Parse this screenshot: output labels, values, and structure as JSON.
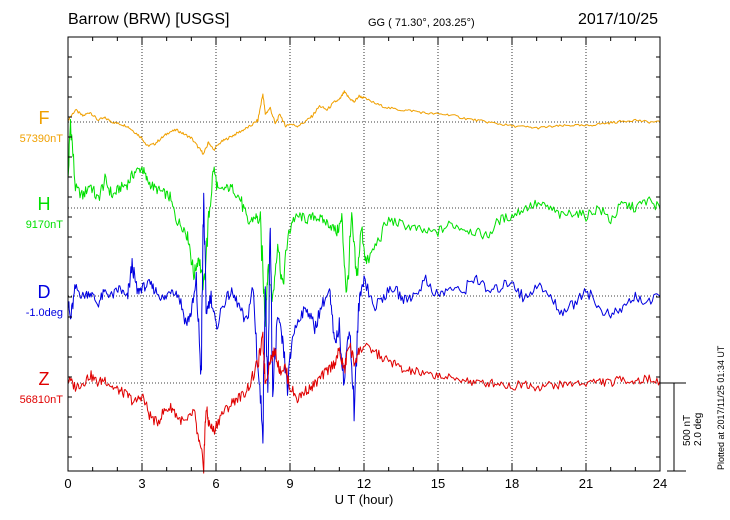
{
  "header": {
    "station": "Barrow (BRW)  [USGS]",
    "coords": "GG ( 71.30°, 203.25°)",
    "date": "2017/10/25"
  },
  "footer": {
    "plotted": "Plotted at 2017/11/25 01:34 UT",
    "scale_nt": "500 nT",
    "scale_deg": "2.0 deg"
  },
  "chart_data": {
    "type": "line",
    "title": "Barrow (BRW)  [USGS]",
    "xlabel": "U T (hour)",
    "ylabel": "",
    "xlim": [
      0,
      24
    ],
    "xticks": [
      0,
      3,
      6,
      9,
      12,
      15,
      18,
      21,
      24
    ],
    "grid": true,
    "series": [
      {
        "name": "F",
        "baseline_label": "57390nT",
        "color": "#f0a000",
        "x": [
          0,
          0.3,
          0.6,
          0.9,
          1.2,
          1.5,
          1.8,
          2.1,
          2.4,
          2.7,
          3.0,
          3.2,
          3.5,
          3.8,
          4.1,
          4.4,
          4.7,
          5.0,
          5.3,
          5.5,
          5.7,
          5.9,
          6.2,
          6.5,
          6.8,
          7.1,
          7.4,
          7.7,
          7.9,
          8.0,
          8.2,
          8.4,
          8.6,
          8.8,
          9.0,
          9.3,
          9.6,
          9.9,
          10.2,
          10.5,
          10.8,
          11.0,
          11.2,
          11.4,
          11.6,
          11.8,
          12.0,
          12.5,
          13.0,
          13.5,
          14.0,
          14.5,
          15.0,
          15.5,
          16.0,
          16.5,
          17.0,
          17.5,
          18.0,
          18.5,
          19.0,
          19.5,
          20.0,
          20.5,
          21.0,
          21.5,
          22.0,
          22.5,
          23.0,
          23.5,
          24.0
        ],
        "y": [
          0.05,
          0.3,
          0.15,
          0.25,
          0.05,
          0.1,
          0.0,
          -0.05,
          -0.1,
          -0.25,
          -0.4,
          -0.6,
          -0.55,
          -0.4,
          -0.25,
          -0.2,
          -0.3,
          -0.4,
          -0.65,
          -0.8,
          -0.5,
          -0.7,
          -0.5,
          -0.4,
          -0.3,
          -0.2,
          -0.1,
          0.05,
          0.7,
          0.2,
          0.35,
          -0.05,
          0.2,
          -0.1,
          -0.05,
          -0.1,
          0.0,
          0.15,
          0.4,
          0.3,
          0.5,
          0.55,
          0.75,
          0.6,
          0.5,
          0.65,
          0.6,
          0.45,
          0.35,
          0.3,
          0.28,
          0.22,
          0.2,
          0.18,
          0.1,
          0.05,
          0.0,
          -0.05,
          -0.1,
          -0.12,
          -0.15,
          -0.12,
          -0.1,
          -0.08,
          -0.1,
          -0.05,
          -0.02,
          0.02,
          0.05,
          0.0,
          0.0
        ]
      },
      {
        "name": "H",
        "baseline_label": "9170nT",
        "color": "#00e000",
        "x": [
          0,
          0.1,
          0.3,
          0.6,
          0.9,
          1.2,
          1.5,
          1.8,
          2.1,
          2.4,
          2.7,
          3.0,
          3.2,
          3.5,
          3.8,
          4.1,
          4.4,
          4.7,
          4.9,
          5.1,
          5.3,
          5.5,
          5.7,
          5.9,
          6.1,
          6.4,
          6.7,
          7.0,
          7.3,
          7.6,
          7.8,
          8.0,
          8.1,
          8.3,
          8.5,
          8.7,
          8.9,
          9.1,
          9.4,
          9.7,
          10.0,
          10.3,
          10.6,
          10.9,
          11.1,
          11.3,
          11.5,
          11.7,
          11.9,
          12.1,
          12.5,
          13.0,
          13.5,
          14.0,
          14.5,
          15.0,
          15.5,
          16.0,
          16.5,
          17.0,
          17.5,
          18.0,
          18.5,
          19.0,
          19.5,
          20.0,
          20.5,
          21.0,
          21.5,
          22.0,
          22.5,
          23.0,
          23.5,
          24.0
        ],
        "y": [
          0.6,
          2.2,
          0.5,
          0.3,
          0.6,
          0.2,
          0.7,
          0.3,
          0.5,
          0.6,
          0.9,
          1.0,
          0.7,
          0.5,
          0.4,
          0.3,
          -0.3,
          -0.5,
          -0.8,
          -1.7,
          -1.2,
          -2.0,
          -0.3,
          1.0,
          0.4,
          0.5,
          0.5,
          0.2,
          -0.4,
          -0.2,
          -0.4,
          -2.8,
          -1.5,
          -2.3,
          -0.8,
          -2.0,
          -0.8,
          -0.3,
          -0.2,
          -0.3,
          -0.2,
          -0.3,
          -0.4,
          -0.6,
          -0.3,
          -2.2,
          -0.3,
          -1.8,
          -0.5,
          -1.4,
          -0.9,
          -0.3,
          -0.4,
          -0.5,
          -0.6,
          -0.6,
          -0.4,
          -0.5,
          -0.6,
          -0.7,
          -0.3,
          -0.2,
          0.0,
          0.1,
          0.0,
          -0.2,
          -0.1,
          -0.2,
          0.0,
          -0.3,
          0.1,
          0.0,
          0.2,
          0.0
        ]
      },
      {
        "name": "D",
        "baseline_label": "-1.0deg",
        "color": "#0000e0",
        "x": [
          0,
          0.1,
          0.3,
          0.6,
          0.9,
          1.2,
          1.5,
          1.8,
          2.1,
          2.4,
          2.6,
          2.8,
          3.0,
          3.3,
          3.6,
          3.9,
          4.2,
          4.5,
          4.8,
          5.0,
          5.2,
          5.4,
          5.5,
          5.6,
          5.8,
          6.0,
          6.3,
          6.6,
          6.9,
          7.2,
          7.5,
          7.7,
          7.9,
          8.0,
          8.1,
          8.2,
          8.3,
          8.5,
          8.7,
          8.9,
          9.1,
          9.4,
          9.7,
          10.0,
          10.3,
          10.6,
          10.8,
          11.0,
          11.2,
          11.4,
          11.6,
          11.8,
          12.0,
          12.4,
          12.8,
          13.2,
          13.6,
          14.0,
          14.5,
          15.0,
          15.5,
          16.0,
          16.5,
          17.0,
          17.5,
          18.0,
          18.5,
          19.0,
          19.5,
          20.0,
          20.5,
          21.0,
          21.5,
          22.0,
          22.5,
          23.0,
          23.5,
          24.0
        ],
        "y": [
          -0.1,
          -0.6,
          0.2,
          0.0,
          0.1,
          -0.2,
          0.1,
          0.0,
          0.2,
          -0.1,
          0.8,
          0.1,
          0.2,
          0.3,
          0.1,
          -0.1,
          0.2,
          0.0,
          -0.7,
          -0.4,
          0.3,
          -2.0,
          2.5,
          -0.4,
          0.0,
          -0.8,
          -0.2,
          0.1,
          -0.2,
          -0.7,
          0.2,
          -1.8,
          -3.3,
          0.3,
          -2.8,
          1.9,
          -2.5,
          -0.5,
          -1.2,
          -2.3,
          -1.0,
          -0.5,
          -0.3,
          -0.8,
          -0.2,
          0.1,
          -1.2,
          -0.8,
          -2.2,
          -0.6,
          -2.8,
          -0.2,
          0.5,
          -0.3,
          0.0,
          0.2,
          -0.1,
          0.0,
          0.4,
          0.0,
          0.2,
          0.1,
          0.5,
          0.1,
          0.2,
          0.4,
          -0.1,
          0.3,
          0.0,
          -0.4,
          -0.2,
          0.2,
          -0.3,
          -0.5,
          -0.3,
          0.0,
          -0.2,
          0.0
        ]
      },
      {
        "name": "Z",
        "baseline_label": "56810nT",
        "color": "#e00000",
        "x": [
          0,
          0.3,
          0.6,
          0.9,
          1.2,
          1.5,
          1.8,
          2.1,
          2.4,
          2.7,
          3.0,
          3.3,
          3.6,
          3.9,
          4.2,
          4.5,
          4.8,
          5.1,
          5.3,
          5.5,
          5.6,
          5.7,
          5.9,
          6.2,
          6.5,
          6.8,
          7.1,
          7.4,
          7.7,
          7.9,
          8.0,
          8.2,
          8.4,
          8.6,
          8.8,
          9.0,
          9.3,
          9.6,
          9.9,
          10.2,
          10.5,
          10.8,
          11.0,
          11.2,
          11.4,
          11.6,
          11.8,
          12.0,
          12.4,
          12.8,
          13.2,
          13.6,
          14.0,
          14.5,
          15.0,
          15.5,
          16.0,
          16.5,
          17.0,
          17.5,
          18.0,
          18.5,
          19.0,
          19.5,
          20.0,
          20.5,
          21.0,
          21.5,
          22.0,
          22.5,
          23.0,
          23.5,
          24.0
        ],
        "y": [
          0.1,
          -0.1,
          0.0,
          0.2,
          0.0,
          0.1,
          -0.1,
          -0.2,
          -0.3,
          -0.5,
          -0.3,
          -0.8,
          -1.0,
          -0.7,
          -0.6,
          -0.9,
          -1.0,
          -0.7,
          -1.5,
          -2.0,
          -0.6,
          -1.0,
          -1.2,
          -0.8,
          -0.6,
          -0.4,
          -0.3,
          0.0,
          0.5,
          1.1,
          0.0,
          0.6,
          0.8,
          0.3,
          0.4,
          -0.1,
          -0.4,
          -0.2,
          -0.1,
          0.1,
          0.3,
          0.5,
          0.8,
          0.3,
          1.0,
          0.5,
          0.8,
          0.9,
          0.8,
          0.6,
          0.5,
          0.3,
          0.3,
          0.2,
          0.2,
          0.1,
          0.1,
          0.0,
          0.0,
          0.0,
          -0.1,
          0.0,
          -0.1,
          -0.05,
          -0.05,
          0.0,
          0.0,
          0.05,
          0.0,
          0.1,
          0.05,
          0.1,
          0.05
        ]
      }
    ]
  }
}
